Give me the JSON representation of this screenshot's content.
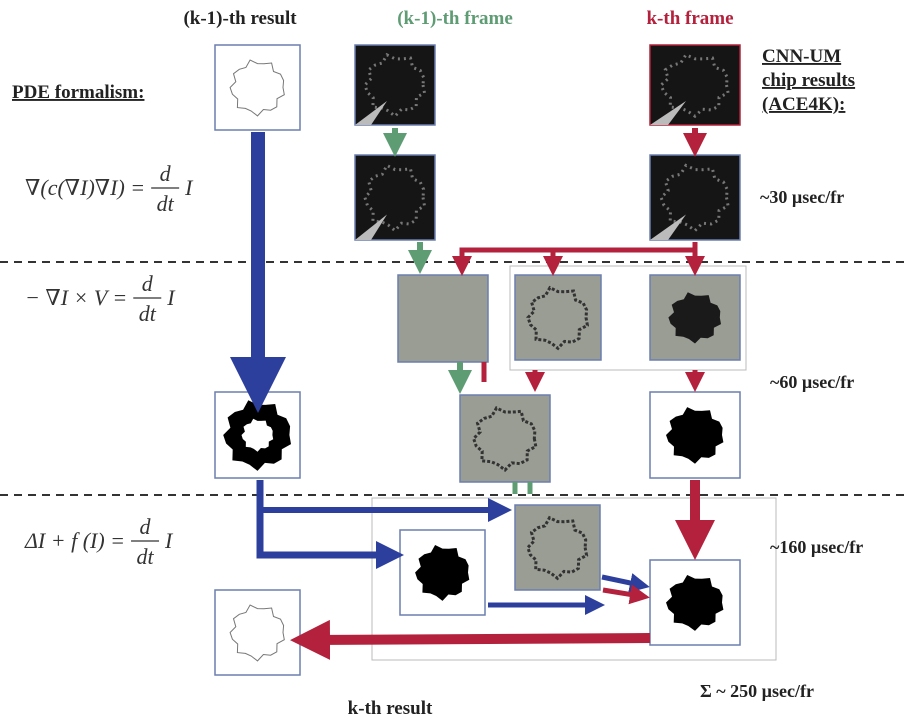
{
  "column_headers": {
    "previous_result": "(k-1)-th result",
    "previous_frame": "(k-1)-th frame",
    "current_frame": "k-th frame"
  },
  "left_heading": "PDE formalism:",
  "right_heading": [
    "CNN-UM",
    "chip results",
    "(ACE4K):"
  ],
  "equations": [
    {
      "lhs": "∇(c(∇I)∇I) =",
      "numerator": "d",
      "denominator": "dt",
      "rhs": "I"
    },
    {
      "lhs": "− ∇I × V =",
      "numerator": "d",
      "denominator": "dt",
      "rhs": "I"
    },
    {
      "lhs": "ΔI + f (I) =",
      "numerator": "d",
      "denominator": "dt",
      "rhs": "I"
    }
  ],
  "timings": [
    "~30 µsec/fr",
    "~60 µsec/fr",
    "~160 µsec/fr"
  ],
  "total_time": "Σ ~ 250 µsec/fr",
  "footer_label": "k-th result"
}
